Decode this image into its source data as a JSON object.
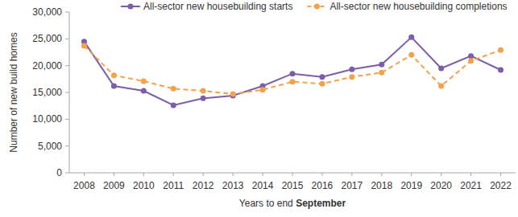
{
  "chart_data": {
    "type": "line",
    "x_label": "Years to end September",
    "y_label": "Number of new build homes",
    "categories": [
      "2008",
      "2009",
      "2010",
      "2011",
      "2012",
      "2013",
      "2014",
      "2015",
      "2016",
      "2017",
      "2018",
      "2019",
      "2020",
      "2021",
      "2022"
    ],
    "series": [
      {
        "name": "All-sector new housebuilding starts",
        "color": "#7b5ea7",
        "marker": "circle",
        "line_style": "solid",
        "values": [
          24500,
          16200,
          15300,
          12600,
          13900,
          14400,
          16200,
          18500,
          17900,
          19300,
          20200,
          25300,
          19500,
          21800,
          19200
        ]
      },
      {
        "name": "All-sector new housebuilding completions",
        "color": "#f4a24a",
        "marker": "circle",
        "line_style": "dashed",
        "values": [
          23700,
          18200,
          17100,
          15700,
          15300,
          14700,
          15500,
          17000,
          16600,
          17900,
          18700,
          22000,
          16200,
          20900,
          22900
        ]
      }
    ],
    "ylim": [
      0,
      30000
    ],
    "yticks": [
      0,
      {
        "value": 5000,
        "label": "5,000"
      },
      {
        "value": 10000,
        "label": "10,000"
      },
      {
        "value": 15000,
        "label": "15,000"
      },
      {
        "value": 20000,
        "label": "20,000"
      },
      {
        "value": 25000,
        "label": "25,000"
      },
      {
        "value": 30000,
        "label": "30,000"
      }
    ],
    "grid": false,
    "legend": "top"
  }
}
